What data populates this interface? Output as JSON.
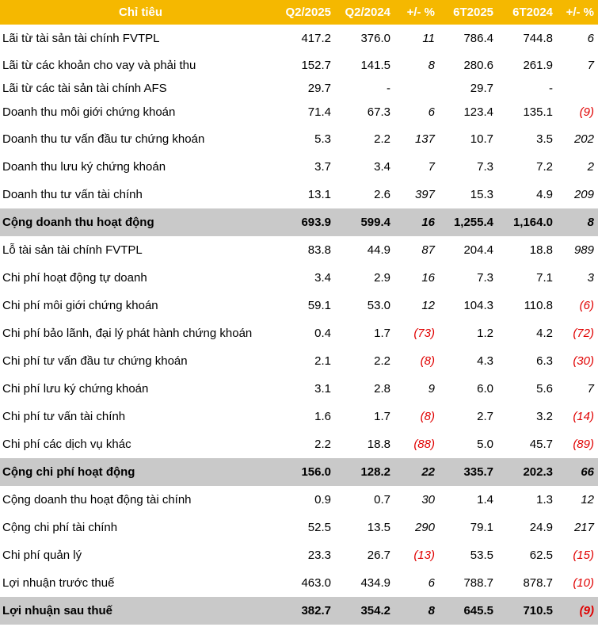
{
  "header": [
    "Chỉ tiêu",
    "Q2/2025",
    "Q2/2024",
    "+/- %",
    "6T2025",
    "6T2024",
    "+/- %"
  ],
  "rows": [
    {
      "label": "Lãi từ tài sản tài chính FVTPL",
      "q2_2025": "417.2",
      "q2_2024": "376.0",
      "q_pct": "11",
      "h1_2025": "786.4",
      "h1_2024": "744.8",
      "h_pct": "6",
      "q_neg": false,
      "h_neg": false,
      "total": false,
      "size": "med"
    },
    {
      "label": "Lãi từ các khoản cho vay và phải thu",
      "q2_2025": "152.7",
      "q2_2024": "141.5",
      "q_pct": "8",
      "h1_2025": "280.6",
      "h1_2024": "261.9",
      "h_pct": "7",
      "q_neg": false,
      "h_neg": false,
      "total": false,
      "size": "med"
    },
    {
      "label": "Lãi từ các tài sản tài chính AFS",
      "q2_2025": "29.7",
      "q2_2024": "-",
      "q_pct": "",
      "h1_2025": "29.7",
      "h1_2024": "-",
      "h_pct": "",
      "q_neg": false,
      "h_neg": false,
      "total": false,
      "size": "short"
    },
    {
      "label": "Doanh thu môi giới chứng khoán",
      "q2_2025": "71.4",
      "q2_2024": "67.3",
      "q_pct": "6",
      "h1_2025": "123.4",
      "h1_2024": "135.1",
      "h_pct": "(9)",
      "q_neg": false,
      "h_neg": true,
      "total": false,
      "size": "med"
    },
    {
      "label": "Doanh thu tư vấn đầu tư chứng khoán",
      "q2_2025": "5.3",
      "q2_2024": "2.2",
      "q_pct": "137",
      "h1_2025": "10.7",
      "h1_2024": "3.5",
      "h_pct": "202",
      "q_neg": false,
      "h_neg": false,
      "total": false,
      "size": "full"
    },
    {
      "label": "Doanh thu lưu ký chứng khoán",
      "q2_2025": "3.7",
      "q2_2024": "3.4",
      "q_pct": "7",
      "h1_2025": "7.3",
      "h1_2024": "7.2",
      "h_pct": "2",
      "q_neg": false,
      "h_neg": false,
      "total": false,
      "size": "full"
    },
    {
      "label": "Doanh thu tư vấn tài chính",
      "q2_2025": "13.1",
      "q2_2024": "2.6",
      "q_pct": "397",
      "h1_2025": "15.3",
      "h1_2024": "4.9",
      "h_pct": "209",
      "q_neg": false,
      "h_neg": false,
      "total": false,
      "size": "full"
    },
    {
      "label": "Cộng doanh thu hoạt động",
      "q2_2025": "693.9",
      "q2_2024": "599.4",
      "q_pct": "16",
      "h1_2025": "1,255.4",
      "h1_2024": "1,164.0",
      "h_pct": "8",
      "q_neg": false,
      "h_neg": false,
      "total": true,
      "size": "full"
    },
    {
      "label": "Lỗ tài sản tài chính FVTPL",
      "q2_2025": "83.8",
      "q2_2024": "44.9",
      "q_pct": "87",
      "h1_2025": "204.4",
      "h1_2024": "18.8",
      "h_pct": "989",
      "q_neg": false,
      "h_neg": false,
      "total": false,
      "size": "full"
    },
    {
      "label": "Chi phí hoạt động tự doanh",
      "q2_2025": "3.4",
      "q2_2024": "2.9",
      "q_pct": "16",
      "h1_2025": "7.3",
      "h1_2024": "7.1",
      "h_pct": "3",
      "q_neg": false,
      "h_neg": false,
      "total": false,
      "size": "full"
    },
    {
      "label": "Chi phí môi giới chứng khoán",
      "q2_2025": "59.1",
      "q2_2024": "53.0",
      "q_pct": "12",
      "h1_2025": "104.3",
      "h1_2024": "110.8",
      "h_pct": "(6)",
      "q_neg": false,
      "h_neg": true,
      "total": false,
      "size": "full"
    },
    {
      "label": "Chi phí bảo lãnh, đại lý phát hành chứng khoán",
      "q2_2025": "0.4",
      "q2_2024": "1.7",
      "q_pct": "(73)",
      "h1_2025": "1.2",
      "h1_2024": "4.2",
      "h_pct": "(72)",
      "q_neg": true,
      "h_neg": true,
      "total": false,
      "size": "full"
    },
    {
      "label": "Chi phí tư vấn đầu tư chứng khoán",
      "q2_2025": "2.1",
      "q2_2024": "2.2",
      "q_pct": "(8)",
      "h1_2025": "4.3",
      "h1_2024": "6.3",
      "h_pct": "(30)",
      "q_neg": true,
      "h_neg": true,
      "total": false,
      "size": "full"
    },
    {
      "label": "Chi phí lưu ký chứng khoán",
      "q2_2025": "3.1",
      "q2_2024": "2.8",
      "q_pct": "9",
      "h1_2025": "6.0",
      "h1_2024": "5.6",
      "h_pct": "7",
      "q_neg": false,
      "h_neg": false,
      "total": false,
      "size": "full"
    },
    {
      "label": "Chi phí tư vấn tài chính",
      "q2_2025": "1.6",
      "q2_2024": "1.7",
      "q_pct": "(8)",
      "h1_2025": "2.7",
      "h1_2024": "3.2",
      "h_pct": "(14)",
      "q_neg": true,
      "h_neg": true,
      "total": false,
      "size": "full"
    },
    {
      "label": "Chi phí các dịch vụ khác",
      "q2_2025": "2.2",
      "q2_2024": "18.8",
      "q_pct": "(88)",
      "h1_2025": "5.0",
      "h1_2024": "45.7",
      "h_pct": "(89)",
      "q_neg": true,
      "h_neg": true,
      "total": false,
      "size": "full"
    },
    {
      "label": "Cộng chi phí hoạt động",
      "q2_2025": "156.0",
      "q2_2024": "128.2",
      "q_pct": "22",
      "h1_2025": "335.7",
      "h1_2024": "202.3",
      "h_pct": "66",
      "q_neg": false,
      "h_neg": false,
      "total": true,
      "size": "full"
    },
    {
      "label": "Cộng doanh thu hoạt động tài chính",
      "q2_2025": "0.9",
      "q2_2024": "0.7",
      "q_pct": "30",
      "h1_2025": "1.4",
      "h1_2024": "1.3",
      "h_pct": "12",
      "q_neg": false,
      "h_neg": false,
      "total": false,
      "size": "full"
    },
    {
      "label": "Cộng chi phí tài chính",
      "q2_2025": "52.5",
      "q2_2024": "13.5",
      "q_pct": "290",
      "h1_2025": "79.1",
      "h1_2024": "24.9",
      "h_pct": "217",
      "q_neg": false,
      "h_neg": false,
      "total": false,
      "size": "full"
    },
    {
      "label": "Chi phí quản lý",
      "q2_2025": "23.3",
      "q2_2024": "26.7",
      "q_pct": "(13)",
      "h1_2025": "53.5",
      "h1_2024": "62.5",
      "h_pct": "(15)",
      "q_neg": true,
      "h_neg": true,
      "total": false,
      "size": "full"
    },
    {
      "label": "Lợi nhuận trước thuế",
      "q2_2025": "463.0",
      "q2_2024": "434.9",
      "q_pct": "6",
      "h1_2025": "788.7",
      "h1_2024": "878.7",
      "h_pct": "(10)",
      "q_neg": false,
      "h_neg": true,
      "total": false,
      "size": "full"
    },
    {
      "label": "Lợi nhuận sau thuế",
      "q2_2025": "382.7",
      "q2_2024": "354.2",
      "q_pct": "8",
      "h1_2025": "645.5",
      "h1_2024": "710.5",
      "h_pct": "(9)",
      "q_neg": false,
      "h_neg": true,
      "total": true,
      "size": "full"
    }
  ]
}
